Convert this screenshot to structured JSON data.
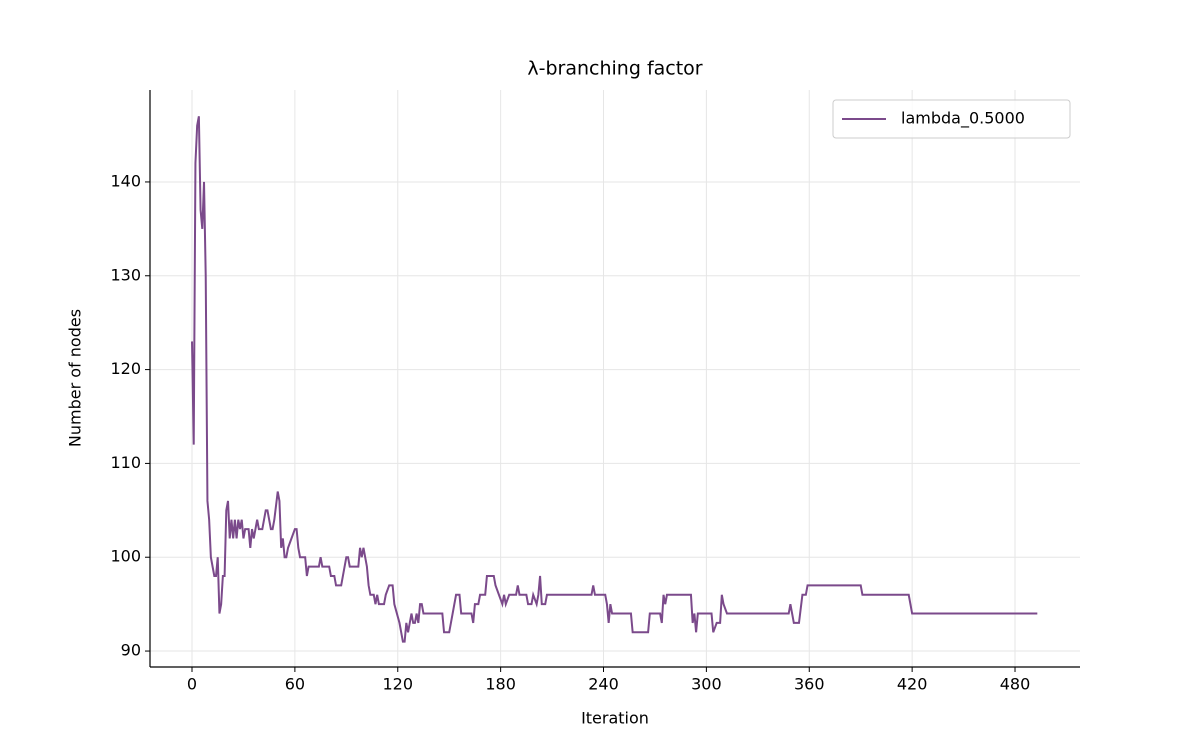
{
  "chart_data": {
    "type": "line",
    "title": "λ-branching factor",
    "x_label": "Iteration",
    "y_label": "Number of nodes",
    "xlim": [
      -24.5,
      517.9
    ],
    "ylim": [
      88.3,
      149.8
    ],
    "xticks": [
      0,
      60,
      120,
      180,
      240,
      300,
      360,
      420,
      480
    ],
    "yticks": [
      90,
      100,
      110,
      120,
      130,
      140
    ],
    "grid": true,
    "legend": "upper right",
    "x": [
      0,
      1,
      2,
      3,
      4,
      5,
      6,
      7,
      8,
      9,
      10,
      11,
      13,
      14,
      15,
      16,
      17,
      18,
      19,
      20,
      21,
      22,
      23,
      24,
      25,
      26,
      27,
      28,
      29,
      30,
      31,
      33,
      34,
      35,
      36,
      38,
      39,
      41,
      43,
      44,
      46,
      47,
      48,
      50,
      51,
      52,
      53,
      54,
      55,
      56,
      58,
      60,
      61,
      62,
      63,
      66,
      67,
      68,
      74,
      75,
      76,
      80,
      81,
      83,
      84,
      87,
      89,
      90,
      91,
      92,
      97,
      98,
      99,
      100,
      102,
      103,
      104,
      106,
      107,
      108,
      109,
      112,
      113,
      115,
      117,
      118,
      121,
      122,
      123,
      124,
      125,
      126,
      127,
      128,
      129,
      130,
      131,
      132,
      133,
      134,
      135,
      146,
      147,
      150,
      152,
      154,
      156,
      157,
      163,
      164,
      165,
      167,
      168,
      171,
      172,
      176,
      177,
      179,
      181,
      182,
      183,
      185,
      189,
      190,
      191,
      195,
      196,
      198,
      199,
      201,
      202,
      203,
      204,
      206,
      207,
      233,
      234,
      235,
      241,
      242,
      243,
      244,
      245,
      256,
      257,
      266,
      267,
      273,
      274,
      275,
      276,
      277,
      291,
      292,
      293,
      294,
      295,
      303,
      304,
      306,
      308,
      309,
      310,
      312,
      348,
      349,
      350,
      351,
      354,
      356,
      358,
      359,
      390,
      391,
      418,
      420,
      493
    ],
    "series": [
      {
        "name": "lambda_0.5000",
        "color": "#7b4a8b",
        "values": [
          123,
          112,
          142,
          146,
          147,
          137,
          135,
          140,
          130,
          106,
          104,
          100,
          98,
          98,
          100,
          94,
          95,
          98,
          98,
          105,
          106,
          102,
          104,
          102,
          104,
          102,
          104,
          103,
          104,
          102,
          103,
          103,
          101,
          103,
          102,
          104,
          103,
          103,
          105,
          105,
          103,
          103,
          104,
          107,
          106,
          101,
          102,
          100,
          100,
          101,
          102,
          103,
          103,
          101,
          100,
          100,
          98,
          99,
          99,
          100,
          99,
          99,
          98,
          98,
          97,
          97,
          99,
          100,
          100,
          99,
          99,
          101,
          100,
          101,
          99,
          97,
          96,
          96,
          95,
          96,
          95,
          95,
          96,
          97,
          97,
          95,
          93,
          92,
          91,
          91,
          93,
          92,
          93,
          94,
          93,
          93,
          94,
          93,
          95,
          95,
          94,
          94,
          92,
          92,
          94,
          96,
          96,
          94,
          94,
          93,
          95,
          95,
          96,
          96,
          98,
          98,
          97,
          96,
          95,
          96,
          95,
          96,
          96,
          97,
          96,
          96,
          95,
          95,
          96,
          95,
          96,
          98,
          95,
          95,
          96,
          96,
          97,
          96,
          96,
          95,
          93,
          95,
          94,
          94,
          92,
          92,
          94,
          94,
          93,
          96,
          95,
          96,
          96,
          93,
          94,
          92,
          94,
          94,
          92,
          93,
          93,
          96,
          95,
          94,
          94,
          95,
          94,
          93,
          93,
          96,
          96,
          97,
          97,
          96,
          96,
          94,
          94
        ]
      }
    ]
  }
}
